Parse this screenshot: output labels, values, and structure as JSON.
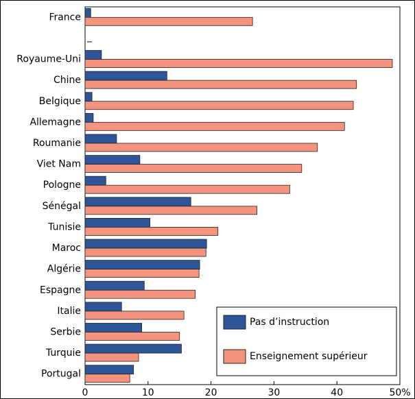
{
  "chart_data": {
    "type": "bar",
    "orientation": "horizontal",
    "categories": [
      "France",
      null,
      "Royaume-Uni",
      "Chine",
      "Belgique",
      "Allemagne",
      "Roumanie",
      "Viet Nam",
      "Pologne",
      "Sénégal",
      "Tunisie",
      "Maroc",
      "Algérie",
      "Espagne",
      "Italie",
      "Serbie",
      "Turquie",
      "Portugal"
    ],
    "series": [
      {
        "name": "Pas d’instruction",
        "color": "#2e5597",
        "values": [
          0.9,
          null,
          2.6,
          13.0,
          1.1,
          1.3,
          5.0,
          8.7,
          3.3,
          16.8,
          10.3,
          19.3,
          18.2,
          9.4,
          5.8,
          9.0,
          15.3,
          7.7
        ]
      },
      {
        "name": "Enseignement supérieur",
        "color": "#f4937e",
        "values": [
          26.6,
          null,
          48.8,
          43.1,
          42.6,
          41.2,
          36.9,
          34.4,
          32.5,
          27.3,
          21.1,
          19.2,
          18.1,
          17.5,
          15.7,
          15.0,
          8.5,
          7.1
        ]
      }
    ],
    "xlim": [
      0,
      50
    ],
    "xticks": [
      0,
      10,
      20,
      30,
      40,
      {
        "value": 50,
        "label": "50%"
      }
    ],
    "legend": "lower right"
  }
}
